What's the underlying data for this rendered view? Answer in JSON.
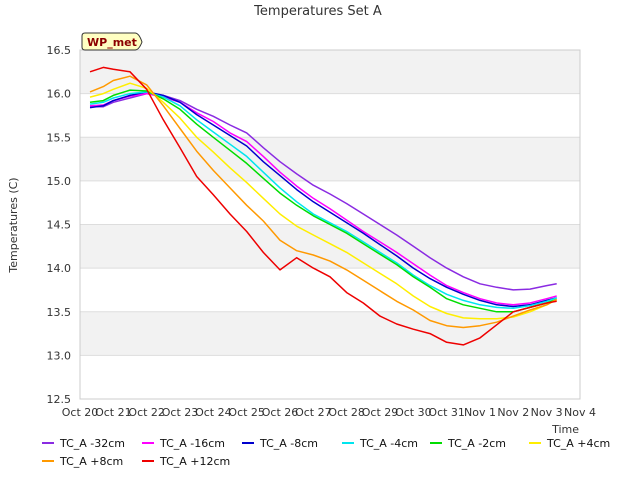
{
  "chart_data": {
    "type": "line",
    "title": "Temperatures Set A",
    "xlabel": "Time",
    "ylabel": "Temperatures (C)",
    "badge": "WP_met",
    "xlim": [
      0,
      15
    ],
    "ylim": [
      12.5,
      16.5
    ],
    "grid": "horizontal bands",
    "legend_position": "bottom",
    "x_ticks": [
      "Oct 20",
      "Oct 21",
      "Oct 22",
      "Oct 23",
      "Oct 24",
      "Oct 25",
      "Oct 26",
      "Oct 27",
      "Oct 28",
      "Oct 29",
      "Oct 30",
      "Oct 31",
      "Nov 1",
      "Nov 2",
      "Nov 3",
      "Nov 4"
    ],
    "y_ticks": [
      "12.5",
      "13.0",
      "13.5",
      "14.0",
      "14.5",
      "15.0",
      "15.5",
      "16.0",
      "16.5"
    ],
    "x": [
      0.3,
      0.7,
      1.0,
      1.5,
      2.0,
      2.5,
      3.0,
      3.5,
      4.0,
      4.5,
      5.0,
      5.5,
      6.0,
      6.5,
      7.0,
      7.5,
      8.0,
      8.5,
      9.0,
      9.5,
      10.0,
      10.5,
      11.0,
      11.5,
      12.0,
      12.5,
      13.0,
      13.5,
      14.0,
      14.3
    ],
    "series": [
      {
        "name": "TC_A -32cm",
        "color": "#8a2be2",
        "values": [
          15.85,
          15.85,
          15.9,
          15.95,
          16.0,
          15.98,
          15.92,
          15.82,
          15.74,
          15.64,
          15.55,
          15.38,
          15.22,
          15.08,
          14.95,
          14.85,
          14.74,
          14.62,
          14.5,
          14.38,
          14.25,
          14.12,
          14.0,
          13.9,
          13.82,
          13.78,
          13.75,
          13.76,
          13.8,
          13.82
        ]
      },
      {
        "name": "TC_A -16cm",
        "color": "#ff00ff",
        "values": [
          15.86,
          15.87,
          15.92,
          15.97,
          16.0,
          15.96,
          15.9,
          15.78,
          15.68,
          15.55,
          15.45,
          15.28,
          15.1,
          14.94,
          14.8,
          14.68,
          14.55,
          14.42,
          14.3,
          14.18,
          14.05,
          13.92,
          13.8,
          13.72,
          13.65,
          13.6,
          13.58,
          13.6,
          13.65,
          13.68
        ]
      },
      {
        "name": "TC_A -8cm",
        "color": "#0000cd",
        "values": [
          15.84,
          15.86,
          15.92,
          15.98,
          16.02,
          15.98,
          15.9,
          15.76,
          15.64,
          15.52,
          15.4,
          15.22,
          15.06,
          14.9,
          14.76,
          14.64,
          14.52,
          14.4,
          14.27,
          14.14,
          14.0,
          13.88,
          13.78,
          13.7,
          13.63,
          13.58,
          13.56,
          13.58,
          13.63,
          13.66
        ]
      },
      {
        "name": "TC_A -4cm",
        "color": "#00e5ee",
        "values": [
          15.88,
          15.9,
          15.95,
          16.0,
          16.02,
          15.96,
          15.86,
          15.7,
          15.56,
          15.42,
          15.28,
          15.1,
          14.92,
          14.76,
          14.62,
          14.52,
          14.42,
          14.3,
          14.18,
          14.06,
          13.92,
          13.8,
          13.7,
          13.63,
          13.58,
          13.55,
          13.54,
          13.57,
          13.62,
          13.66
        ]
      },
      {
        "name": "TC_A -2cm",
        "color": "#00dd00",
        "values": [
          15.9,
          15.92,
          15.98,
          16.04,
          16.03,
          15.94,
          15.82,
          15.65,
          15.5,
          15.35,
          15.2,
          15.03,
          14.86,
          14.72,
          14.6,
          14.5,
          14.4,
          14.28,
          14.16,
          14.04,
          13.9,
          13.78,
          13.65,
          13.58,
          13.54,
          13.5,
          13.5,
          13.55,
          13.6,
          13.64
        ]
      },
      {
        "name": "TC_A +4cm",
        "color": "#ffee00",
        "values": [
          15.96,
          16.0,
          16.05,
          16.12,
          16.06,
          15.9,
          15.72,
          15.5,
          15.33,
          15.15,
          14.98,
          14.8,
          14.62,
          14.48,
          14.38,
          14.28,
          14.18,
          14.06,
          13.94,
          13.82,
          13.68,
          13.56,
          13.48,
          13.43,
          13.42,
          13.42,
          13.44,
          13.5,
          13.58,
          13.64
        ]
      },
      {
        "name": "TC_A +8cm",
        "color": "#ff9900",
        "values": [
          16.02,
          16.08,
          16.15,
          16.2,
          16.1,
          15.86,
          15.6,
          15.34,
          15.12,
          14.92,
          14.72,
          14.54,
          14.32,
          14.2,
          14.15,
          14.08,
          13.98,
          13.86,
          13.74,
          13.62,
          13.52,
          13.4,
          13.34,
          13.32,
          13.34,
          13.38,
          13.45,
          13.52,
          13.58,
          13.64
        ]
      },
      {
        "name": "TC_A +12cm",
        "color": "#ee0000",
        "values": [
          16.25,
          16.3,
          16.28,
          16.25,
          16.05,
          15.7,
          15.38,
          15.05,
          14.84,
          14.62,
          14.42,
          14.18,
          13.98,
          14.12,
          14.0,
          13.9,
          13.72,
          13.6,
          13.45,
          13.36,
          13.3,
          13.25,
          13.15,
          13.12,
          13.2,
          13.35,
          13.5,
          13.55,
          13.6,
          13.62
        ]
      }
    ]
  }
}
